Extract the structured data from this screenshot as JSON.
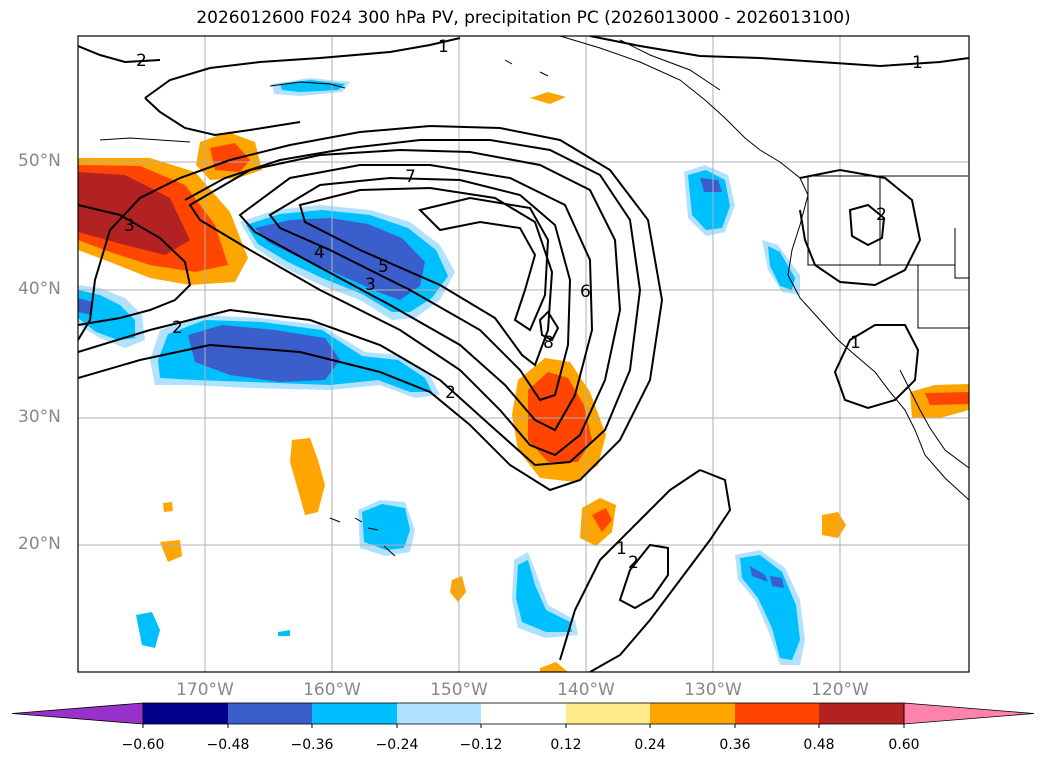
{
  "title": "2026012600 F024 300 hPa PV, precipitation PC (2026013000 - 2026013100)",
  "map": {
    "lat_labels": [
      "50°N",
      "40°N",
      "30°N",
      "20°N"
    ],
    "lon_labels": [
      "170°W",
      "160°W",
      "150°W",
      "140°W",
      "130°W",
      "120°W"
    ],
    "pv_contour_labels": [
      "2",
      "1",
      "1",
      "7",
      "3",
      "4",
      "5",
      "3",
      "2",
      "2",
      "6",
      "8",
      "2",
      "1",
      "1",
      "2"
    ]
  },
  "colorbar": {
    "tick_labels": [
      "−0.60",
      "−0.48",
      "−0.36",
      "−0.24",
      "−0.12",
      "0.12",
      "0.24",
      "0.36",
      "0.48",
      "0.60"
    ],
    "colors": [
      "#9932cc",
      "#00008b",
      "#3a5fcd",
      "#00bfff",
      "#b0e2ff",
      "#ffffff",
      "#ffec8b",
      "#ffa500",
      "#ff4500",
      "#b22222",
      "#ff82ab"
    ]
  }
}
